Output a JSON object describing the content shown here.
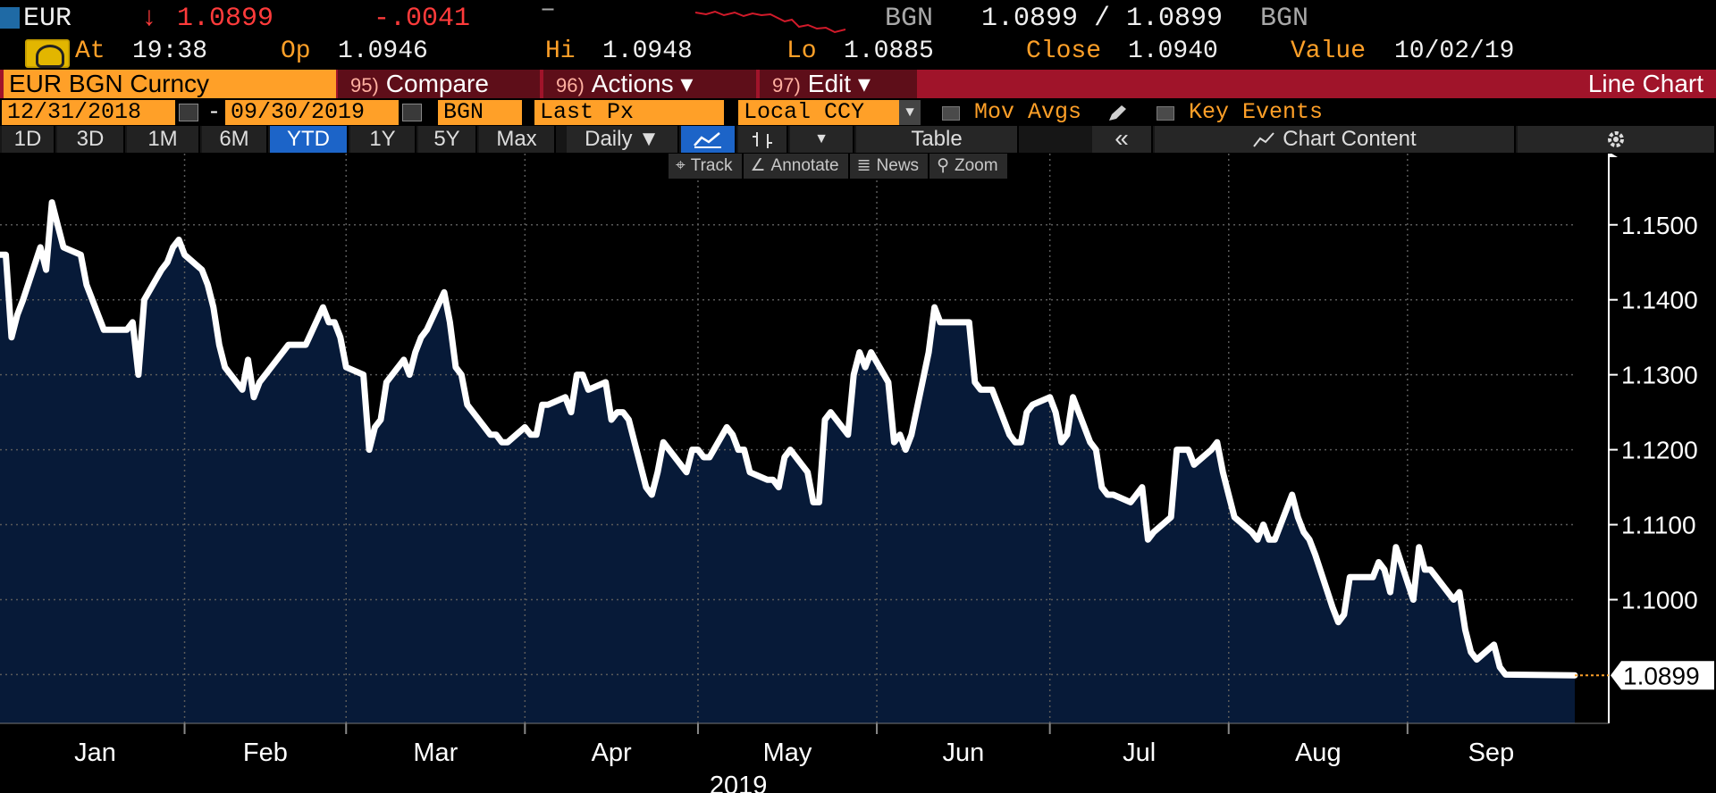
{
  "ticker": {
    "symbol": "EUR",
    "arrow": "↓",
    "last": "1.0899",
    "change": "-.0041",
    "dash": "–",
    "bid_ccy": "BGN",
    "bid_ask": "1.0899 / 1.0899",
    "ask_ccy": "BGN"
  },
  "quote": {
    "at_label": "At",
    "time": "19:38",
    "open_label": "Op",
    "open": "1.0946",
    "high_label": "Hi",
    "high": "1.0948",
    "low_label": "Lo",
    "low": "1.0885",
    "close_label": "Close",
    "close": "1.0940",
    "value_label": "Value",
    "value_date": "10/02/19"
  },
  "command_bar": {
    "security": "EUR BGN Curncy",
    "compare_num": "95)",
    "compare": "Compare",
    "actions_num": "96)",
    "actions": "Actions ▾",
    "edit_num": "97)",
    "edit": "Edit ▾",
    "chart_type": "Line Chart"
  },
  "fields": {
    "start_date": "12/31/2018",
    "dash": "-",
    "end_date": "09/30/2019",
    "currency": "BGN",
    "field": "Last Px",
    "ccy_mode": "Local CCY",
    "mov_avgs": "Mov Avgs",
    "key_events": "Key Events"
  },
  "ranges": [
    "1D",
    "3D",
    "1M",
    "6M",
    "YTD",
    "1Y",
    "5Y",
    "Max"
  ],
  "active_range": "YTD",
  "toolbar": {
    "period": "Daily ▼",
    "table": "Table",
    "collapse": "«",
    "chart_content": "Chart Content"
  },
  "chart_tools": [
    "Track",
    "Annotate",
    "News",
    "Zoom"
  ],
  "icons": {
    "calendar": "calendar-icon",
    "settings": "gear-icon",
    "line_chart": "line-chart-icon",
    "bar_chart": "bar-chart-icon",
    "dropdown": "chevron-down-icon",
    "gauge": "gauge-icon"
  },
  "colors": {
    "accent": "#ffa028",
    "line": "#ffffff",
    "area_fill": "#071a38",
    "command_bar": "#a0142a",
    "negative": "#ff3b3b",
    "active_range": "#1c64c8"
  },
  "chart_data": {
    "type": "area",
    "title": "",
    "xlabel": "2019",
    "ylabel": "",
    "x_tick_labels": [
      "Jan",
      "Feb",
      "Mar",
      "Apr",
      "May",
      "Jun",
      "Jul",
      "Aug",
      "Sep"
    ],
    "y_tick_labels": [
      "1.1000",
      "1.1100",
      "1.1200",
      "1.1300",
      "1.1400",
      "1.1500"
    ],
    "y_ticks": [
      1.1,
      1.11,
      1.12,
      1.13,
      1.14,
      1.15
    ],
    "ylim": [
      1.0835,
      1.1595
    ],
    "xlim": [
      "2018-12-31",
      "2019-09-30"
    ],
    "grid": true,
    "last_value_label": "1.0899",
    "series": [
      {
        "values": [
          [
            "2018-12-31",
            1.146
          ],
          [
            "2019-01-01",
            1.146
          ],
          [
            "2019-01-02",
            1.135
          ],
          [
            "2019-01-03",
            1.138
          ],
          [
            "2019-01-04",
            1.14
          ],
          [
            "2019-01-07",
            1.147
          ],
          [
            "2019-01-08",
            1.144
          ],
          [
            "2019-01-09",
            1.153
          ],
          [
            "2019-01-10",
            1.15
          ],
          [
            "2019-01-11",
            1.147
          ],
          [
            "2019-01-14",
            1.146
          ],
          [
            "2019-01-15",
            1.142
          ],
          [
            "2019-01-16",
            1.14
          ],
          [
            "2019-01-17",
            1.138
          ],
          [
            "2019-01-18",
            1.136
          ],
          [
            "2019-01-21",
            1.136
          ],
          [
            "2019-01-22",
            1.136
          ],
          [
            "2019-01-23",
            1.137
          ],
          [
            "2019-01-24",
            1.13
          ],
          [
            "2019-01-25",
            1.14
          ],
          [
            "2019-01-28",
            1.144
          ],
          [
            "2019-01-29",
            1.145
          ],
          [
            "2019-01-30",
            1.147
          ],
          [
            "2019-01-31",
            1.148
          ],
          [
            "2019-02-01",
            1.146
          ],
          [
            "2019-02-04",
            1.144
          ],
          [
            "2019-02-05",
            1.142
          ],
          [
            "2019-02-06",
            1.139
          ],
          [
            "2019-02-07",
            1.134
          ],
          [
            "2019-02-08",
            1.131
          ],
          [
            "2019-02-11",
            1.128
          ],
          [
            "2019-02-12",
            1.132
          ],
          [
            "2019-02-13",
            1.127
          ],
          [
            "2019-02-14",
            1.129
          ],
          [
            "2019-02-15",
            1.13
          ],
          [
            "2019-02-18",
            1.133
          ],
          [
            "2019-02-19",
            1.134
          ],
          [
            "2019-02-20",
            1.134
          ],
          [
            "2019-02-21",
            1.134
          ],
          [
            "2019-02-22",
            1.134
          ],
          [
            "2019-02-25",
            1.139
          ],
          [
            "2019-02-26",
            1.137
          ],
          [
            "2019-02-27",
            1.137
          ],
          [
            "2019-02-28",
            1.135
          ],
          [
            "2019-03-01",
            1.131
          ],
          [
            "2019-03-04",
            1.13
          ],
          [
            "2019-03-05",
            1.12
          ],
          [
            "2019-03-06",
            1.123
          ],
          [
            "2019-03-07",
            1.124
          ],
          [
            "2019-03-08",
            1.129
          ],
          [
            "2019-03-11",
            1.132
          ],
          [
            "2019-03-12",
            1.13
          ],
          [
            "2019-03-13",
            1.133
          ],
          [
            "2019-03-14",
            1.135
          ],
          [
            "2019-03-15",
            1.136
          ],
          [
            "2019-03-18",
            1.141
          ],
          [
            "2019-03-19",
            1.137
          ],
          [
            "2019-03-20",
            1.131
          ],
          [
            "2019-03-21",
            1.13
          ],
          [
            "2019-03-22",
            1.126
          ],
          [
            "2019-03-25",
            1.123
          ],
          [
            "2019-03-26",
            1.122
          ],
          [
            "2019-03-27",
            1.122
          ],
          [
            "2019-03-28",
            1.121
          ],
          [
            "2019-03-29",
            1.121
          ],
          [
            "2019-04-01",
            1.123
          ],
          [
            "2019-04-02",
            1.122
          ],
          [
            "2019-04-03",
            1.122
          ],
          [
            "2019-04-04",
            1.126
          ],
          [
            "2019-04-05",
            1.126
          ],
          [
            "2019-04-08",
            1.127
          ],
          [
            "2019-04-09",
            1.125
          ],
          [
            "2019-04-10",
            1.13
          ],
          [
            "2019-04-11",
            1.13
          ],
          [
            "2019-04-12",
            1.128
          ],
          [
            "2019-04-15",
            1.129
          ],
          [
            "2019-04-16",
            1.124
          ],
          [
            "2019-04-17",
            1.125
          ],
          [
            "2019-04-18",
            1.125
          ],
          [
            "2019-04-19",
            1.124
          ],
          [
            "2019-04-22",
            1.115
          ],
          [
            "2019-04-23",
            1.114
          ],
          [
            "2019-04-24",
            1.117
          ],
          [
            "2019-04-25",
            1.121
          ],
          [
            "2019-04-26",
            1.12
          ],
          [
            "2019-04-29",
            1.117
          ],
          [
            "2019-04-30",
            1.12
          ],
          [
            "2019-05-01",
            1.12
          ],
          [
            "2019-05-02",
            1.119
          ],
          [
            "2019-05-03",
            1.119
          ],
          [
            "2019-05-06",
            1.123
          ],
          [
            "2019-05-07",
            1.122
          ],
          [
            "2019-05-08",
            1.12
          ],
          [
            "2019-05-09",
            1.12
          ],
          [
            "2019-05-10",
            1.117
          ],
          [
            "2019-05-13",
            1.116
          ],
          [
            "2019-05-14",
            1.116
          ],
          [
            "2019-05-15",
            1.115
          ],
          [
            "2019-05-16",
            1.119
          ],
          [
            "2019-05-17",
            1.12
          ],
          [
            "2019-05-20",
            1.117
          ],
          [
            "2019-05-21",
            1.113
          ],
          [
            "2019-05-22",
            1.113
          ],
          [
            "2019-05-23",
            1.124
          ],
          [
            "2019-05-24",
            1.125
          ],
          [
            "2019-05-27",
            1.122
          ],
          [
            "2019-05-28",
            1.13
          ],
          [
            "2019-05-29",
            1.133
          ],
          [
            "2019-05-30",
            1.131
          ],
          [
            "2019-05-31",
            1.133
          ],
          [
            "2019-06-03",
            1.129
          ],
          [
            "2019-06-04",
            1.121
          ],
          [
            "2019-06-05",
            1.122
          ],
          [
            "2019-06-06",
            1.12
          ],
          [
            "2019-06-07",
            1.122
          ],
          [
            "2019-06-10",
            1.133
          ],
          [
            "2019-06-11",
            1.139
          ],
          [
            "2019-06-12",
            1.137
          ],
          [
            "2019-06-13",
            1.137
          ],
          [
            "2019-06-14",
            1.137
          ],
          [
            "2019-06-17",
            1.137
          ],
          [
            "2019-06-18",
            1.129
          ],
          [
            "2019-06-19",
            1.128
          ],
          [
            "2019-06-20",
            1.128
          ],
          [
            "2019-06-21",
            1.128
          ],
          [
            "2019-06-24",
            1.122
          ],
          [
            "2019-06-25",
            1.121
          ],
          [
            "2019-06-26",
            1.121
          ],
          [
            "2019-06-27",
            1.125
          ],
          [
            "2019-06-28",
            1.126
          ],
          [
            "2019-07-01",
            1.127
          ],
          [
            "2019-07-02",
            1.125
          ],
          [
            "2019-07-03",
            1.121
          ],
          [
            "2019-07-04",
            1.122
          ],
          [
            "2019-07-05",
            1.127
          ],
          [
            "2019-07-08",
            1.121
          ],
          [
            "2019-07-09",
            1.12
          ],
          [
            "2019-07-10",
            1.115
          ],
          [
            "2019-07-11",
            1.114
          ],
          [
            "2019-07-12",
            1.114
          ],
          [
            "2019-07-15",
            1.113
          ],
          [
            "2019-07-16",
            1.114
          ],
          [
            "2019-07-17",
            1.115
          ],
          [
            "2019-07-18",
            1.108
          ],
          [
            "2019-07-19",
            1.109
          ],
          [
            "2019-07-22",
            1.111
          ],
          [
            "2019-07-23",
            1.12
          ],
          [
            "2019-07-24",
            1.12
          ],
          [
            "2019-07-25",
            1.12
          ],
          [
            "2019-07-26",
            1.118
          ],
          [
            "2019-07-29",
            1.12
          ],
          [
            "2019-07-30",
            1.121
          ],
          [
            "2019-07-31",
            1.117
          ],
          [
            "2019-08-01",
            1.114
          ],
          [
            "2019-08-02",
            1.111
          ],
          [
            "2019-08-05",
            1.109
          ],
          [
            "2019-08-06",
            1.108
          ],
          [
            "2019-08-07",
            1.11
          ],
          [
            "2019-08-08",
            1.108
          ],
          [
            "2019-08-09",
            1.108
          ],
          [
            "2019-08-12",
            1.114
          ],
          [
            "2019-08-13",
            1.111
          ],
          [
            "2019-08-14",
            1.109
          ],
          [
            "2019-08-15",
            1.108
          ],
          [
            "2019-08-16",
            1.106
          ],
          [
            "2019-08-19",
            1.099
          ],
          [
            "2019-08-20",
            1.097
          ],
          [
            "2019-08-21",
            1.098
          ],
          [
            "2019-08-22",
            1.103
          ],
          [
            "2019-08-23",
            1.103
          ],
          [
            "2019-08-26",
            1.103
          ],
          [
            "2019-08-27",
            1.105
          ],
          [
            "2019-08-28",
            1.104
          ],
          [
            "2019-08-29",
            1.101
          ],
          [
            "2019-08-30",
            1.107
          ],
          [
            "2019-09-02",
            1.1
          ],
          [
            "2019-09-03",
            1.107
          ],
          [
            "2019-09-04",
            1.104
          ],
          [
            "2019-09-05",
            1.104
          ],
          [
            "2019-09-06",
            1.103
          ],
          [
            "2019-09-09",
            1.1
          ],
          [
            "2019-09-10",
            1.101
          ],
          [
            "2019-09-11",
            1.096
          ],
          [
            "2019-09-12",
            1.093
          ],
          [
            "2019-09-13",
            1.092
          ],
          [
            "2019-09-16",
            1.094
          ],
          [
            "2019-09-17",
            1.091
          ],
          [
            "2019-09-18",
            1.09
          ],
          [
            "2019-09-30",
            1.0899
          ]
        ]
      }
    ]
  }
}
